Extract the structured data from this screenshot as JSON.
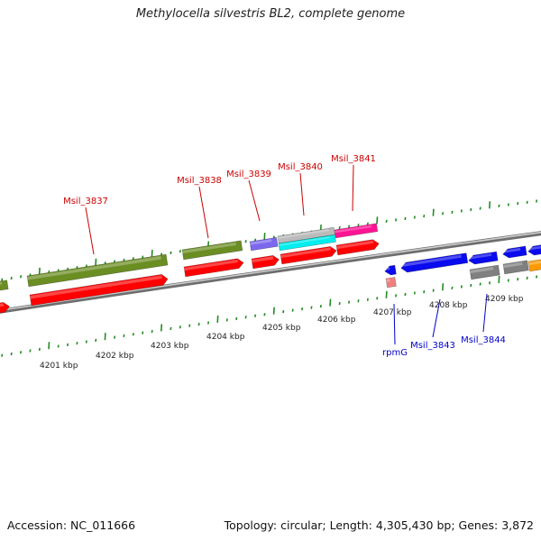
{
  "title": "Methylocella silvestris BL2, complete genome",
  "footer": {
    "accession": "Accession: NC_011666",
    "summary": "Topology: circular; Length: 4,305,430 bp; Genes: 3,872"
  },
  "ruler_labels": [
    "4201 kbp",
    "4202 kbp",
    "4203 kbp",
    "4204 kbp",
    "4205 kbp",
    "4206 kbp",
    "4207 kbp",
    "4208 kbp",
    "4209 kbp"
  ],
  "gene_labels_top": [
    "Msil_3837",
    "Msil_3838",
    "Msil_3839",
    "Msil_3840",
    "Msil_3841"
  ],
  "gene_labels_bottom": [
    "rpmG",
    "Msil_3843",
    "Msil_3844"
  ],
  "colors": {
    "top_label": "#cc0000",
    "bottom_label": "#0000cc",
    "olive": "#6b8e23",
    "red": "#ff0000",
    "purple": "#7b68ee",
    "silver": "#bbbbbb",
    "cyan": "#00eeee",
    "magenta": "#ff1493",
    "blue": "#0a0aee",
    "gray": "#808080",
    "orange": "#ff9900",
    "pink": "#f08080",
    "tick": "#228b22",
    "backbone": "#8a8a8a"
  }
}
